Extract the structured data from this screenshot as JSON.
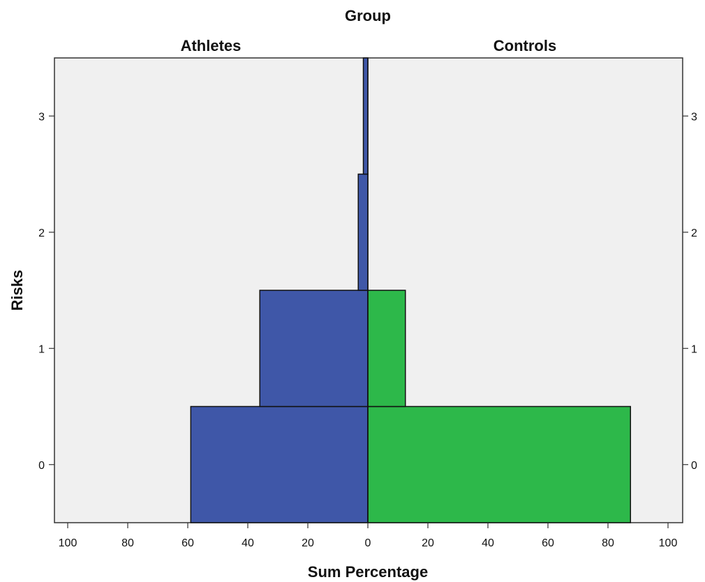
{
  "chart_data": {
    "type": "bar",
    "orientation": "horizontal",
    "layout": "population-pyramid",
    "title": "Group",
    "xlabel": "Sum Percentage",
    "ylabel": "Risks",
    "xlim": [
      0,
      100
    ],
    "ylim": [
      -0.5,
      3.5
    ],
    "x_ticks": [
      "100",
      "80",
      "60",
      "40",
      "20",
      "0",
      "20",
      "40",
      "60",
      "80",
      "100"
    ],
    "y_ticks": [
      "0",
      "1",
      "2",
      "3"
    ],
    "categories": [
      0,
      1,
      2,
      3
    ],
    "grid": false,
    "background": "#f0f0f0",
    "panels": [
      {
        "name": "Athletes",
        "side": "left",
        "color": "#3f57a8",
        "values": [
          59,
          36,
          3.2,
          1.5
        ]
      },
      {
        "name": "Controls",
        "side": "right",
        "color": "#2db84a",
        "values": [
          87.5,
          12.5,
          0,
          0
        ]
      }
    ]
  }
}
